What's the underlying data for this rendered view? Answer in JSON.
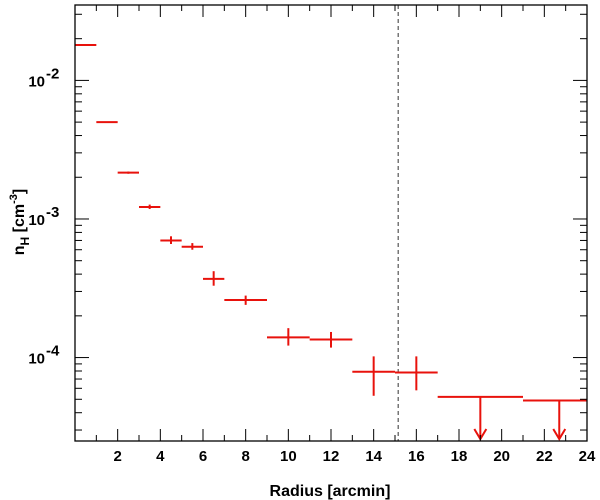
{
  "chart_data": {
    "type": "scatter",
    "xlabel": "Radius [arcmin]",
    "ylabel": {
      "base": "n",
      "sub": "H",
      "unit_pre": " [cm",
      "unit_sup": "-3",
      "unit_post": "]"
    },
    "xlim": [
      0,
      24
    ],
    "ylim": [
      2.5e-05,
      0.035
    ],
    "yscale": "log",
    "x_ticks": [
      2,
      4,
      6,
      8,
      10,
      12,
      14,
      16,
      18,
      20,
      22,
      24
    ],
    "y_tick_labels": [
      {
        "value": 0.01,
        "base": "10",
        "exp": "-2"
      },
      {
        "value": 0.001,
        "base": "10",
        "exp": "-3"
      },
      {
        "value": 0.0001,
        "base": "10",
        "exp": "-4"
      }
    ],
    "reference_line": {
      "x": 15.15,
      "style": "dashed"
    },
    "series": [
      {
        "color": "#e8120c",
        "points": [
          {
            "x": 0.5,
            "x_lo": 0,
            "x_hi": 1,
            "y": 0.018,
            "y_lo": 0.018,
            "y_hi": 0.018
          },
          {
            "x": 1.5,
            "x_lo": 1,
            "x_hi": 2,
            "y": 0.005,
            "y_lo": 0.005,
            "y_hi": 0.005
          },
          {
            "x": 2.5,
            "x_lo": 2,
            "x_hi": 3,
            "y": 0.00216,
            "y_lo": 0.00212,
            "y_hi": 0.0022
          },
          {
            "x": 3.5,
            "x_lo": 3,
            "x_hi": 4,
            "y": 0.00122,
            "y_lo": 0.00118,
            "y_hi": 0.00127
          },
          {
            "x": 4.5,
            "x_lo": 4,
            "x_hi": 5,
            "y": 0.0007,
            "y_lo": 0.00066,
            "y_hi": 0.00075
          },
          {
            "x": 5.5,
            "x_lo": 5,
            "x_hi": 6,
            "y": 0.00063,
            "y_lo": 0.0006,
            "y_hi": 0.00067
          },
          {
            "x": 6.5,
            "x_lo": 6,
            "x_hi": 7,
            "y": 0.00037,
            "y_lo": 0.00033,
            "y_hi": 0.00042
          },
          {
            "x": 8,
            "x_lo": 7,
            "x_hi": 9,
            "y": 0.00026,
            "y_lo": 0.00024,
            "y_hi": 0.00028
          },
          {
            "x": 10,
            "x_lo": 9,
            "x_hi": 11,
            "y": 0.00014,
            "y_lo": 0.000122,
            "y_hi": 0.000163
          },
          {
            "x": 12,
            "x_lo": 11,
            "x_hi": 13,
            "y": 0.000135,
            "y_lo": 0.000118,
            "y_hi": 0.000153
          },
          {
            "x": 14,
            "x_lo": 13,
            "x_hi": 15,
            "y": 7.9e-05,
            "y_lo": 5.3e-05,
            "y_hi": 0.000102
          },
          {
            "x": 16,
            "x_lo": 15,
            "x_hi": 17,
            "y": 7.8e-05,
            "y_lo": 5.8e-05,
            "y_hi": 0.000102
          },
          {
            "x": 19,
            "x_lo": 17,
            "x_hi": 21,
            "y": 5.2e-05,
            "upper_limit": true
          },
          {
            "x": 22.7,
            "x_lo": 21,
            "x_hi": 24,
            "y": 4.9e-05,
            "upper_limit": true
          }
        ]
      }
    ]
  }
}
